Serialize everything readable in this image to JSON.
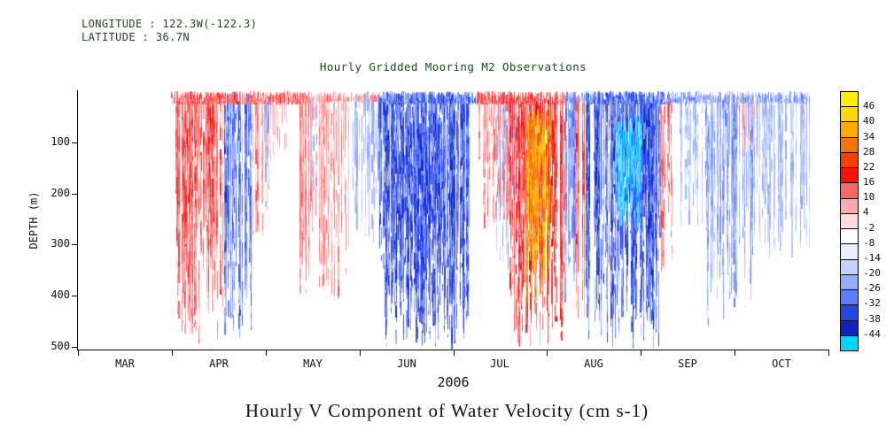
{
  "header": {
    "longitude_label": "LONGITUDE : 122.3W(-122.3)",
    "latitude_label": "LATITUDE : 36.7N",
    "plot_title": "Hourly Gridded Mooring M2 Observations"
  },
  "axes": {
    "y_label": "DEPTH (m)",
    "y_ticks": [
      "100",
      "200",
      "300",
      "400",
      "500"
    ],
    "x_ticks": [
      "MAR",
      "APR",
      "MAY",
      "JUN",
      "JUL",
      "AUG",
      "SEP",
      "OCT"
    ]
  },
  "footer": {
    "year_label": "2006",
    "main_title": "Hourly V Component of Water Velocity (cm s-1)"
  },
  "colorbar": {
    "labels": [
      "46",
      "40",
      "34",
      "28",
      "22",
      "16",
      "10",
      "4",
      "-2",
      "-8",
      "-14",
      "-20",
      "-26",
      "-32",
      "-38",
      "-44"
    ],
    "colors": [
      "#fff200",
      "#ffd800",
      "#ffaa00",
      "#ff7300",
      "#ff3d00",
      "#ff0f00",
      "#ff6666",
      "#ffaaaa",
      "#ffdddd",
      "#ffffff",
      "#e8eeff",
      "#c4d2ff",
      "#93adff",
      "#5b7dff",
      "#2847e0",
      "#0b23b8",
      "#00d4ff"
    ]
  },
  "chart_data": {
    "type": "heatmap",
    "title": "Hourly Gridded Mooring M2 Observations",
    "subtitle_lines": [
      "LONGITUDE : 122.3W(-122.3)",
      "LATITUDE : 36.7N"
    ],
    "xlabel": "2006",
    "ylabel": "DEPTH (m)",
    "value_label": "Hourly V Component of Water Velocity (cm s-1)",
    "x_categories": [
      "MAR",
      "APR",
      "MAY",
      "JUN",
      "JUL",
      "AUG",
      "SEP",
      "OCT"
    ],
    "y_range": [
      0,
      505
    ],
    "y_ticks": [
      100,
      200,
      300,
      400,
      500
    ],
    "colorbar": {
      "units": "cm s-1",
      "tick_labels": [
        46,
        40,
        34,
        28,
        22,
        16,
        10,
        4,
        -2,
        -8,
        -14,
        -20,
        -26,
        -32,
        -38,
        -44
      ],
      "segment_colors_top_to_bottom": [
        "#fff200",
        "#ffd800",
        "#ffaa00",
        "#ff7300",
        "#ff3d00",
        "#ff0f00",
        "#ff6666",
        "#ffaaaa",
        "#ffdddd",
        "#ffffff",
        "#e8eeff",
        "#c4d2ff",
        "#93adff",
        "#5b7dff",
        "#2847e0",
        "#0b23b8",
        "#00d4ff"
      ]
    },
    "palettes": {
      "pos": [
        "#ffd9d9",
        "#ffb3b3",
        "#ff8585",
        "#ff5252",
        "#ff2121",
        "#e60000"
      ],
      "neg": [
        "#dbe4ff",
        "#b6c7ff",
        "#8aa4ff",
        "#5a79ff",
        "#2b47f5",
        "#0a23cf"
      ],
      "core_pos": [
        "#ff9100",
        "#ffb300",
        "#ffd000",
        "#ff7100"
      ],
      "core_neg": [
        "#00cfff",
        "#36e0ff",
        "#00a8ff",
        "#6deaff"
      ]
    },
    "events": [
      {
        "x0": 0.128,
        "x1": 0.195,
        "d0": 0,
        "d1": 500,
        "palette": "pos",
        "intensity": 0.8,
        "density": 0.6
      },
      {
        "x0": 0.195,
        "x1": 0.232,
        "d0": 0,
        "d1": 490,
        "palette": "neg",
        "intensity": 0.85,
        "density": 0.65
      },
      {
        "x0": 0.233,
        "x1": 0.252,
        "d0": 0,
        "d1": 300,
        "palette": "pos",
        "intensity": 0.55,
        "density": 0.35
      },
      {
        "x0": 0.247,
        "x1": 0.258,
        "d0": 0,
        "d1": 240,
        "palette": "neg",
        "intensity": 0.5,
        "density": 0.3
      },
      {
        "x0": 0.252,
        "x1": 0.278,
        "d0": 0,
        "d1": 160,
        "palette": "pos",
        "intensity": 0.45,
        "density": 0.3
      },
      {
        "x0": 0.295,
        "x1": 0.358,
        "d0": 0,
        "d1": 430,
        "palette": "pos",
        "intensity": 0.6,
        "density": 0.4
      },
      {
        "x0": 0.303,
        "x1": 0.315,
        "d0": 0,
        "d1": 260,
        "palette": "neg",
        "intensity": 0.45,
        "density": 0.25
      },
      {
        "x0": 0.36,
        "x1": 0.405,
        "d0": 0,
        "d1": 310,
        "palette": "neg",
        "intensity": 0.45,
        "density": 0.3
      },
      {
        "x0": 0.401,
        "x1": 0.522,
        "d0": 0,
        "d1": 505,
        "palette": "neg",
        "intensity": 0.95,
        "density": 0.85
      },
      {
        "x0": 0.43,
        "x1": 0.505,
        "d0": 30,
        "d1": 505,
        "palette": "neg",
        "intensity": 1.0,
        "density": 0.55
      },
      {
        "x0": 0.534,
        "x1": 0.576,
        "d0": 0,
        "d1": 280,
        "palette": "pos",
        "intensity": 0.6,
        "density": 0.4
      },
      {
        "x0": 0.557,
        "x1": 0.582,
        "d0": 0,
        "d1": 350,
        "palette": "neg",
        "intensity": 0.5,
        "density": 0.25
      },
      {
        "x0": 0.575,
        "x1": 0.648,
        "d0": 0,
        "d1": 500,
        "palette": "pos",
        "intensity": 0.95,
        "density": 0.75
      },
      {
        "x0": 0.596,
        "x1": 0.63,
        "d0": 30,
        "d1": 430,
        "palette": "core_pos",
        "intensity": 1.0,
        "density": 0.85
      },
      {
        "x0": 0.648,
        "x1": 0.663,
        "d0": 0,
        "d1": 430,
        "palette": "neg",
        "intensity": 0.65,
        "density": 0.5
      },
      {
        "x0": 0.662,
        "x1": 0.676,
        "d0": 0,
        "d1": 505,
        "palette": "pos",
        "intensity": 0.8,
        "density": 0.55
      },
      {
        "x0": 0.676,
        "x1": 0.776,
        "d0": 0,
        "d1": 505,
        "palette": "neg",
        "intensity": 0.95,
        "density": 0.9
      },
      {
        "x0": 0.715,
        "x1": 0.752,
        "d0": 40,
        "d1": 270,
        "palette": "core_neg",
        "intensity": 1.0,
        "density": 0.9
      },
      {
        "x0": 0.776,
        "x1": 0.793,
        "d0": 0,
        "d1": 370,
        "palette": "pos",
        "intensity": 0.65,
        "density": 0.45
      },
      {
        "x0": 0.8,
        "x1": 0.836,
        "d0": 0,
        "d1": 280,
        "palette": "neg",
        "intensity": 0.4,
        "density": 0.3
      },
      {
        "x0": 0.836,
        "x1": 0.9,
        "d0": 0,
        "d1": 460,
        "palette": "neg",
        "intensity": 0.6,
        "density": 0.5
      },
      {
        "x0": 0.875,
        "x1": 0.905,
        "d0": 0,
        "d1": 130,
        "palette": "pos",
        "intensity": 0.4,
        "density": 0.25
      },
      {
        "x0": 0.9,
        "x1": 0.975,
        "d0": 0,
        "d1": 330,
        "palette": "neg",
        "intensity": 0.45,
        "density": 0.4
      },
      {
        "x0": 0.125,
        "x1": 0.305,
        "d0": 0,
        "d1": 26,
        "palette": "pos",
        "intensity": 0.7,
        "density": 2.2
      },
      {
        "x0": 0.305,
        "x1": 0.4,
        "d0": 0,
        "d1": 22,
        "palette": "pos",
        "intensity": 0.5,
        "density": 1.0
      },
      {
        "x0": 0.401,
        "x1": 0.53,
        "d0": 0,
        "d1": 26,
        "palette": "neg",
        "intensity": 0.8,
        "density": 2.2
      },
      {
        "x0": 0.532,
        "x1": 0.648,
        "d0": 0,
        "d1": 26,
        "palette": "pos",
        "intensity": 0.8,
        "density": 2.0
      },
      {
        "x0": 0.648,
        "x1": 0.676,
        "d0": 0,
        "d1": 24,
        "palette": "neg",
        "intensity": 0.6,
        "density": 1.5
      },
      {
        "x0": 0.676,
        "x1": 0.79,
        "d0": 0,
        "d1": 26,
        "palette": "neg",
        "intensity": 0.8,
        "density": 2.2
      },
      {
        "x0": 0.79,
        "x1": 0.975,
        "d0": 0,
        "d1": 24,
        "palette": "neg",
        "intensity": 0.6,
        "density": 1.6
      }
    ]
  }
}
